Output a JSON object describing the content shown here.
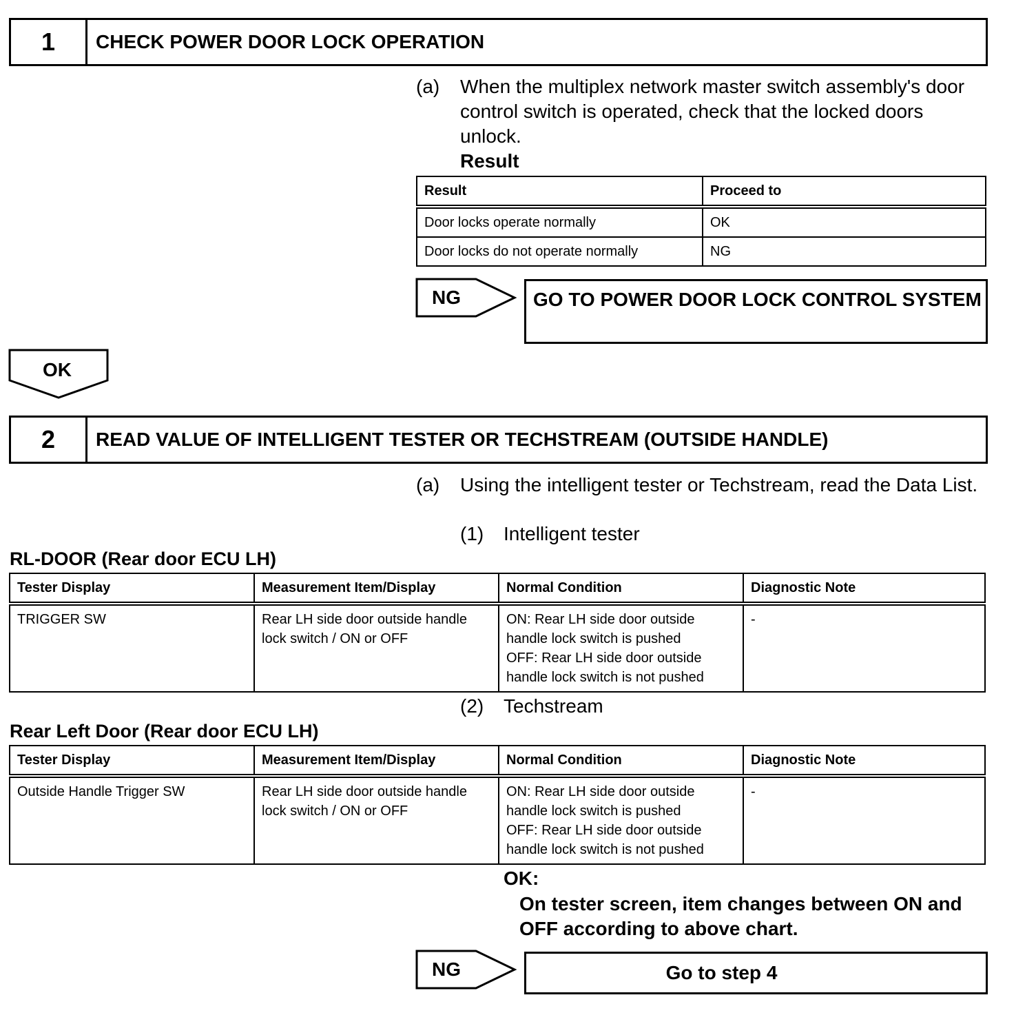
{
  "step1": {
    "number": "1",
    "title": "CHECK POWER DOOR LOCK OPERATION",
    "item_a_marker": "(a)",
    "item_a_text": "When the multiplex network master switch assembly's door control switch is operated, check that the locked doors unlock.",
    "result_label": "Result",
    "table": {
      "headers": [
        "Result",
        "Proceed to"
      ],
      "rows": [
        [
          "Door locks operate normally",
          "OK"
        ],
        [
          "Door locks do not operate normally",
          "NG"
        ]
      ]
    },
    "ng_label": "NG",
    "ng_target": "GO TO POWER DOOR LOCK CONTROL SYSTEM",
    "ok_label": "OK"
  },
  "step2": {
    "number": "2",
    "title": "READ VALUE OF INTELLIGENT TESTER OR TECHSTREAM (OUTSIDE HANDLE)",
    "item_a_marker": "(a)",
    "item_a_text": "Using the intelligent tester or Techstream, read the Data List.",
    "sub1_marker": "(1)",
    "sub1_text": "Intelligent tester",
    "table1_title": "RL-DOOR (Rear door ECU LH)",
    "table1": {
      "headers": [
        "Tester Display",
        "Measurement Item/Display",
        "Normal Condition",
        "Diagnostic Note"
      ],
      "rows": [
        [
          "TRIGGER SW",
          "Rear LH side door outside handle lock switch / ON or OFF",
          "ON: Rear LH side door outside handle lock switch is pushed\nOFF: Rear LH side door outside handle lock switch is not pushed",
          "-"
        ]
      ]
    },
    "sub2_marker": "(2)",
    "sub2_text": "Techstream",
    "table2_title": "Rear Left Door (Rear door ECU LH)",
    "table2": {
      "headers": [
        "Tester Display",
        "Measurement Item/Display",
        "Normal Condition",
        "Diagnostic Note"
      ],
      "rows": [
        [
          "Outside Handle Trigger SW",
          "Rear LH side door outside handle lock switch / ON or OFF",
          "ON: Rear LH side door outside handle lock switch is pushed\nOFF: Rear LH side door outside handle lock switch is not pushed",
          "-"
        ]
      ]
    },
    "ok_heading": "OK:",
    "ok_text": "On tester screen, item changes between ON and OFF according to above chart.",
    "ng_label": "NG",
    "ng_target": "Go to step 4"
  }
}
